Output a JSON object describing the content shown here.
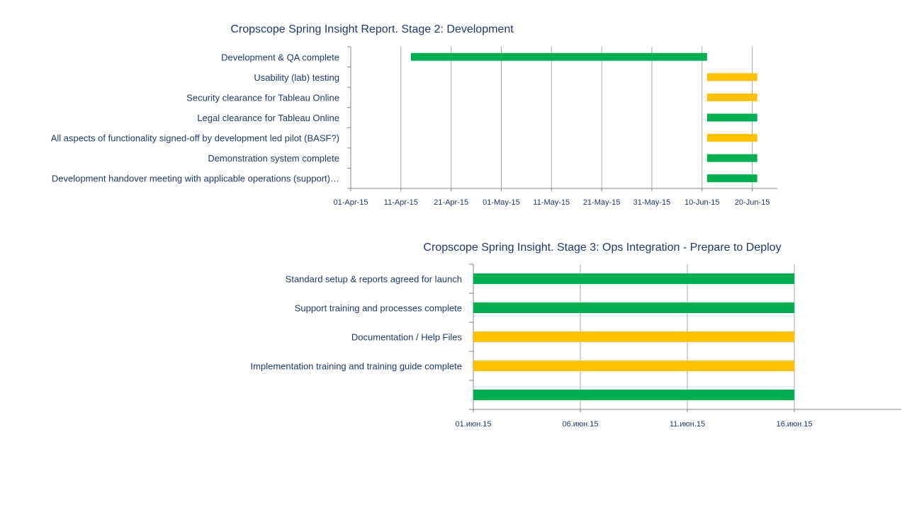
{
  "chart_data": [
    {
      "type": "bar",
      "orientation": "horizontal",
      "title": "Cropscope Spring Insight Report. Stage 2: Development",
      "tasks": [
        {
          "label": "Development & QA complete",
          "start": "2015-04-13",
          "end": "2015-06-11",
          "status": "green"
        },
        {
          "label": "Usability (lab) testing",
          "start": "2015-06-11",
          "end": "2015-06-21",
          "status": "amber"
        },
        {
          "label": "Security clearance for Tableau Online",
          "start": "2015-06-11",
          "end": "2015-06-21",
          "status": "amber"
        },
        {
          "label": "Legal clearance for Tableau Online",
          "start": "2015-06-11",
          "end": "2015-06-21",
          "status": "green"
        },
        {
          "label": "All aspects of functionality signed-off by development led pilot (BASF?)",
          "start": "2015-06-11",
          "end": "2015-06-21",
          "status": "amber"
        },
        {
          "label": "Demonstration system complete",
          "start": "2015-06-11",
          "end": "2015-06-21",
          "status": "green"
        },
        {
          "label": "Development handover meeting with applicable operations (support)…",
          "start": "2015-06-11",
          "end": "2015-06-21",
          "status": "green"
        }
      ],
      "x_ticks": [
        {
          "label": "01-Apr-15",
          "date": "2015-04-01"
        },
        {
          "label": "11-Apr-15",
          "date": "2015-04-11"
        },
        {
          "label": "21-Apr-15",
          "date": "2015-04-21"
        },
        {
          "label": "01-May-15",
          "date": "2015-05-01"
        },
        {
          "label": "11-May-15",
          "date": "2015-05-11"
        },
        {
          "label": "21-May-15",
          "date": "2015-05-21"
        },
        {
          "label": "31-May-15",
          "date": "2015-05-31"
        },
        {
          "label": "10-Jun-15",
          "date": "2015-06-10"
        },
        {
          "label": "20-Jun-15",
          "date": "2015-06-20"
        }
      ],
      "xlim": [
        "2015-04-01",
        "2015-06-25"
      ],
      "grid": "vertical"
    },
    {
      "type": "bar",
      "orientation": "horizontal",
      "title": "Cropscope Spring Insight. Stage 3: Ops Integration - Prepare to Deploy",
      "tasks": [
        {
          "label": "Standard setup & reports agreed for launch",
          "start": "2015-06-01",
          "end": "2015-06-16",
          "status": "green"
        },
        {
          "label": "Support training and processes complete",
          "start": "2015-06-01",
          "end": "2015-06-16",
          "status": "green"
        },
        {
          "label": "Documentation / Help Files",
          "start": "2015-06-01",
          "end": "2015-06-16",
          "status": "amber"
        },
        {
          "label": "Implementation training and training guide complete",
          "start": "2015-06-01",
          "end": "2015-06-16",
          "status": "amber"
        },
        {
          "label": "",
          "start": "2015-06-01",
          "end": "2015-06-16",
          "status": "green"
        }
      ],
      "x_ticks": [
        {
          "label": "01.июн.15",
          "date": "2015-06-01"
        },
        {
          "label": "06.июн.15",
          "date": "2015-06-06"
        },
        {
          "label": "11.июн.15",
          "date": "2015-06-11"
        },
        {
          "label": "16.июн.15",
          "date": "2015-06-16"
        }
      ],
      "xlim": [
        "2015-06-01",
        "2015-06-21"
      ],
      "grid": "vertical"
    }
  ],
  "colors": {
    "green": "#00b050",
    "amber": "#ffc000",
    "text": "#1f3864",
    "grid": "#a6a6a6",
    "axis": "#868686"
  }
}
